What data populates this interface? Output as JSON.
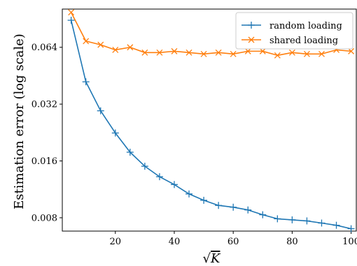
{
  "chart_data": {
    "type": "line",
    "xlabel": "√K",
    "ylabel": "Estimation error (log scale)",
    "yscale": "log2",
    "xlim": [
      2,
      102
    ],
    "ylim": [
      0.0068,
      0.102
    ],
    "xticks": [
      20,
      40,
      60,
      80,
      100
    ],
    "yticks": [
      0.008,
      0.016,
      0.032,
      0.064
    ],
    "ytick_labels": [
      "0.008",
      "0.016",
      "0.032",
      "0.064"
    ],
    "grid": false,
    "legend_position": "top-right",
    "x": [
      5,
      10,
      15,
      20,
      25,
      30,
      35,
      40,
      45,
      50,
      55,
      60,
      65,
      70,
      75,
      80,
      85,
      90,
      95,
      100
    ],
    "series": [
      {
        "name": "random loading",
        "color": "#1f77b4",
        "marker": "plus",
        "values": [
          0.089,
          0.042,
          0.0295,
          0.0225,
          0.0178,
          0.015,
          0.0132,
          0.012,
          0.0107,
          0.0099,
          0.0093,
          0.0091,
          0.0088,
          0.0083,
          0.0079,
          0.0078,
          0.0077,
          0.0075,
          0.0073,
          0.007
        ]
      },
      {
        "name": "shared loading",
        "color": "#ff7f0e",
        "marker": "x",
        "values": [
          0.098,
          0.069,
          0.066,
          0.062,
          0.064,
          0.06,
          0.06,
          0.061,
          0.06,
          0.059,
          0.06,
          0.059,
          0.061,
          0.061,
          0.058,
          0.06,
          0.059,
          0.059,
          0.062,
          0.061
        ]
      }
    ]
  }
}
